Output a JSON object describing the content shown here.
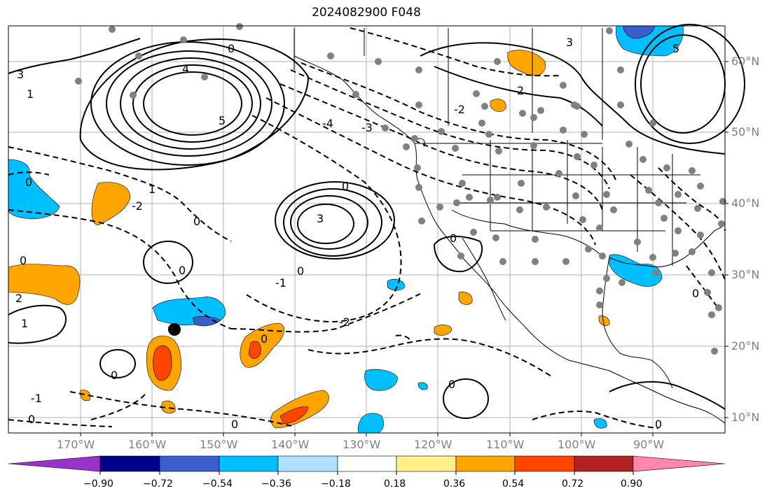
{
  "title": "2024082900 F048",
  "lon_labels": [
    "170°W",
    "160°W",
    "150°W",
    "140°W",
    "130°W",
    "120°W",
    "110°W",
    "100°W",
    "90°W"
  ],
  "lat_labels": [
    "60°N",
    "50°N",
    "40°N",
    "30°N",
    "20°N",
    "10°N"
  ],
  "colorbar": {
    "ticks": [
      "−0.90",
      "−0.72",
      "−0.54",
      "−0.36",
      "−0.18",
      "0.18",
      "0.36",
      "0.54",
      "0.72",
      "0.90"
    ],
    "colors": [
      "#9932cc",
      "#00008b",
      "#3a5fcd",
      "#00bfff",
      "#b0e2ff",
      "#ffffff",
      "#fff08a",
      "#ffa500",
      "#ff4500",
      "#b22222",
      "#ff88aa"
    ]
  },
  "contour_labels": [
    "0",
    "-1",
    "-2",
    "-3",
    "-4",
    "1",
    "2",
    "3",
    "4",
    "5"
  ]
}
